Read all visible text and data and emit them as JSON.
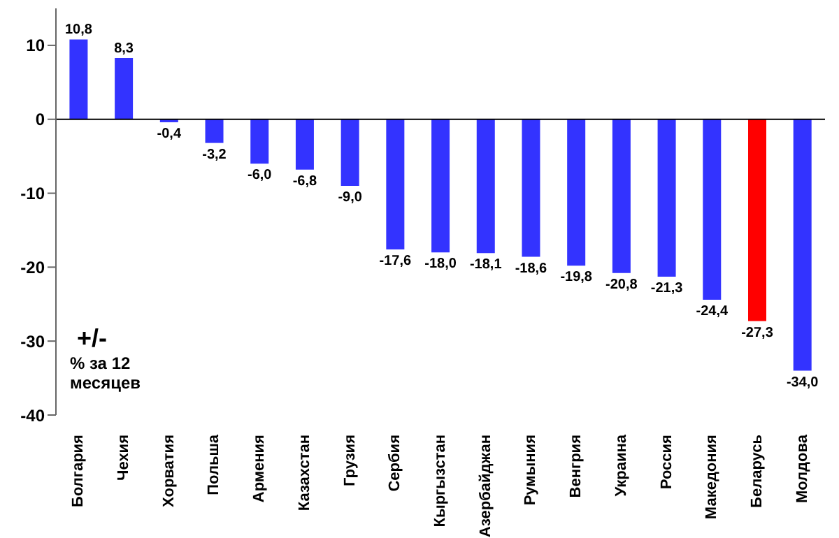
{
  "chart_data": {
    "type": "bar",
    "categories": [
      "Болгария",
      "Чехия",
      "Хорватия",
      "Польша",
      "Армения",
      "Казахстан",
      "Грузия",
      "Сербия",
      "Кыргызстан",
      "Азербайджан",
      "Румыния",
      "Венгрия",
      "Украина",
      "Россия",
      "Македония",
      "Беларусь",
      "Молдова"
    ],
    "values": [
      10.8,
      8.3,
      -0.4,
      -3.2,
      -6.0,
      -6.8,
      -9.0,
      -17.6,
      -18.0,
      -18.1,
      -18.6,
      -19.8,
      -20.8,
      -21.3,
      -24.4,
      -27.3,
      -34.0
    ],
    "value_labels": [
      "10,8",
      "8,3",
      "-0,4",
      "-3,2",
      "-6,0",
      "-6,8",
      "-9,0",
      "-17,6",
      "-18,0",
      "-18,1",
      "-18,6",
      "-19,8",
      "-20,8",
      "-21,3",
      "-24,4",
      "-27,3",
      "-34,0"
    ],
    "colors": [
      "#3333ff",
      "#3333ff",
      "#3333ff",
      "#3333ff",
      "#3333ff",
      "#3333ff",
      "#3333ff",
      "#3333ff",
      "#3333ff",
      "#3333ff",
      "#3333ff",
      "#3333ff",
      "#3333ff",
      "#3333ff",
      "#3333ff",
      "#ff0000",
      "#3333ff"
    ],
    "ylim": [
      -40,
      15
    ],
    "yticks": [
      -40,
      -30,
      -20,
      -10,
      0,
      10
    ],
    "annotations": [
      "+/-",
      "% за 12 месяцев"
    ]
  }
}
